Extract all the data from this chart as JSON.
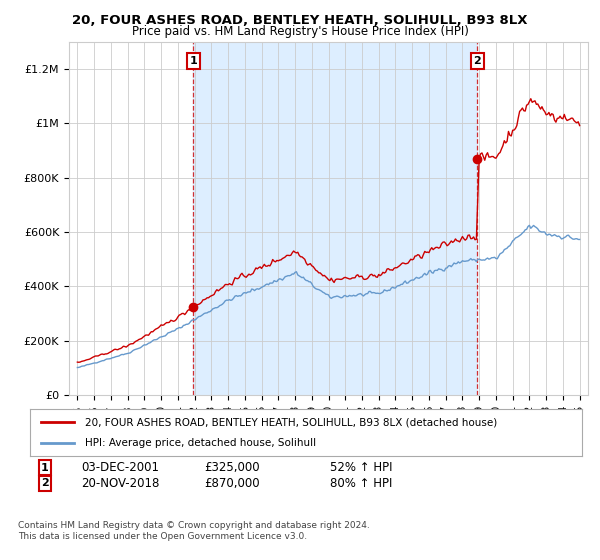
{
  "title": "20, FOUR ASHES ROAD, BENTLEY HEATH, SOLIHULL, B93 8LX",
  "subtitle": "Price paid vs. HM Land Registry's House Price Index (HPI)",
  "legend_line1": "20, FOUR ASHES ROAD, BENTLEY HEATH, SOLIHULL, B93 8LX (detached house)",
  "legend_line2": "HPI: Average price, detached house, Solihull",
  "footer1": "Contains HM Land Registry data © Crown copyright and database right 2024.",
  "footer2": "This data is licensed under the Open Government Licence v3.0.",
  "annotation1_label": "1",
  "annotation1_date": "03-DEC-2001",
  "annotation1_price": "£325,000",
  "annotation1_hpi": "52% ↑ HPI",
  "annotation2_label": "2",
  "annotation2_date": "20-NOV-2018",
  "annotation2_price": "£870,000",
  "annotation2_hpi": "80% ↑ HPI",
  "sale1_x": 2001.92,
  "sale1_y": 325000,
  "sale2_x": 2018.88,
  "sale2_y": 870000,
  "line_color_red": "#cc0000",
  "line_color_blue": "#6699cc",
  "shade_color": "#ddeeff",
  "background_color": "#ffffff",
  "grid_color": "#cccccc",
  "ylim": [
    0,
    1300000
  ],
  "xlim": [
    1994.5,
    2025.5
  ],
  "yticks": [
    0,
    200000,
    400000,
    600000,
    800000,
    1000000,
    1200000
  ],
  "ytick_labels": [
    "£0",
    "£200K",
    "£400K",
    "£600K",
    "£800K",
    "£1M",
    "£1.2M"
  ],
  "xticks": [
    1995,
    1996,
    1997,
    1998,
    1999,
    2000,
    2001,
    2002,
    2003,
    2004,
    2005,
    2006,
    2007,
    2008,
    2009,
    2010,
    2011,
    2012,
    2013,
    2014,
    2015,
    2016,
    2017,
    2018,
    2019,
    2020,
    2021,
    2022,
    2023,
    2024,
    2025
  ]
}
